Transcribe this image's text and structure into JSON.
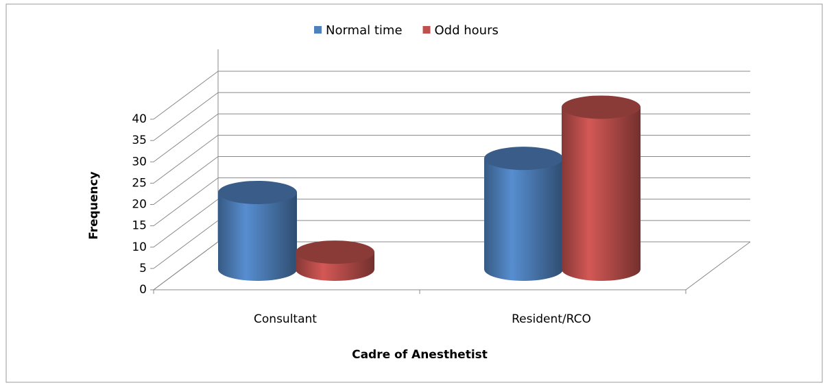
{
  "chart_data": {
    "type": "bar3d",
    "x_label": "Cadre of Anesthetist",
    "y_label": "Frequency",
    "categories": [
      "Consultant",
      "Resident/RCO"
    ],
    "series": [
      {
        "name": "Normal time",
        "color": "#4f81bd",
        "values": [
          18,
          26
        ]
      },
      {
        "name": "Odd hours",
        "color": "#c0504d",
        "values": [
          4,
          38
        ]
      }
    ],
    "ylim": [
      0,
      40
    ],
    "yticks": [
      0,
      5,
      10,
      15,
      20,
      25,
      30,
      35,
      40
    ],
    "grid": true,
    "legend": "top"
  }
}
